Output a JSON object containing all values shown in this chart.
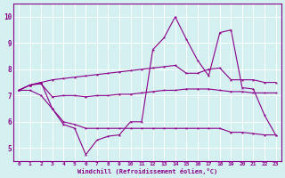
{
  "title": "",
  "xlabel": "Windchill (Refroidissement éolien,°C)",
  "ylabel": "",
  "background_color": "#d4f0f0",
  "line_color": "#8b008b",
  "xlim": [
    -0.5,
    23.5
  ],
  "ylim": [
    4.5,
    10.5
  ],
  "yticks": [
    5,
    6,
    7,
    8,
    9,
    10
  ],
  "xticks": [
    0,
    1,
    2,
    3,
    4,
    5,
    6,
    7,
    8,
    9,
    10,
    11,
    12,
    13,
    14,
    15,
    16,
    17,
    18,
    19,
    20,
    21,
    22,
    23
  ],
  "series1_x": [
    0,
    1,
    2,
    3,
    4,
    5,
    6,
    7,
    8,
    9,
    10,
    11,
    12,
    13,
    14,
    15,
    16,
    17,
    18,
    19,
    20,
    21,
    22,
    23
  ],
  "series1_y": [
    7.2,
    7.4,
    7.45,
    6.95,
    7.0,
    7.0,
    6.95,
    7.0,
    7.0,
    7.05,
    7.05,
    7.1,
    7.15,
    7.2,
    7.2,
    7.25,
    7.25,
    7.25,
    7.2,
    7.15,
    7.15,
    7.1,
    7.1,
    7.1
  ],
  "series2_x": [
    0,
    1,
    2,
    3,
    4,
    5,
    6,
    7,
    8,
    9,
    10,
    11,
    12,
    13,
    14,
    15,
    16,
    17,
    18,
    19,
    20,
    21,
    22,
    23
  ],
  "series2_y": [
    7.2,
    7.4,
    7.5,
    7.6,
    7.65,
    7.7,
    7.75,
    7.8,
    7.85,
    7.9,
    7.95,
    8.0,
    8.05,
    8.1,
    8.15,
    7.85,
    7.85,
    8.0,
    8.05,
    7.6,
    7.6,
    7.6,
    7.5,
    7.5
  ],
  "series3_x": [
    0,
    1,
    2,
    3,
    4,
    5,
    6,
    7,
    8,
    9,
    10,
    11,
    12,
    13,
    14,
    15,
    16,
    17,
    18,
    19,
    20,
    21,
    22,
    23
  ],
  "series3_y": [
    7.2,
    7.4,
    7.5,
    6.5,
    5.9,
    5.75,
    4.75,
    5.3,
    5.45,
    5.5,
    6.0,
    6.0,
    8.75,
    9.2,
    10.0,
    9.15,
    8.35,
    7.75,
    9.4,
    9.5,
    7.3,
    7.25,
    6.25,
    5.5
  ],
  "series4_x": [
    0,
    1,
    2,
    3,
    4,
    5,
    6,
    7,
    8,
    9,
    10,
    11,
    12,
    13,
    14,
    15,
    16,
    17,
    18,
    19,
    20,
    21,
    22,
    23
  ],
  "series4_y": [
    7.2,
    7.2,
    7.0,
    6.5,
    6.0,
    5.9,
    5.75,
    5.75,
    5.75,
    5.75,
    5.75,
    5.75,
    5.75,
    5.75,
    5.75,
    5.75,
    5.75,
    5.75,
    5.75,
    5.6,
    5.6,
    5.55,
    5.5,
    5.5
  ]
}
